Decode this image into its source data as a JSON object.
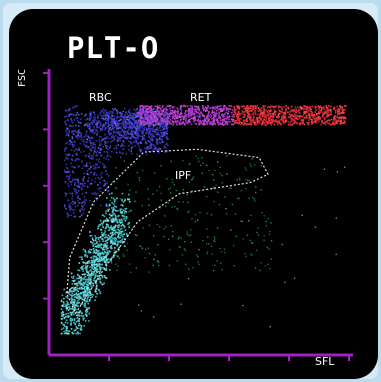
{
  "chart_data": {
    "type": "scatter",
    "title": "PLT-O",
    "xlabel": "SFL",
    "ylabel": "FSC",
    "xlim": [
      0,
      100
    ],
    "ylim": [
      0,
      100
    ],
    "grid": false,
    "legend": "none",
    "annotations": [
      {
        "text": "RBC",
        "x": 17,
        "y": 92
      },
      {
        "text": "RET",
        "x": 51,
        "y": 92
      },
      {
        "text": "IPF",
        "x": 46,
        "y": 64
      }
    ],
    "gates": [
      {
        "label": "IPF",
        "points": [
          [
            9,
            15
          ],
          [
            18,
            30
          ],
          [
            30,
            48
          ],
          [
            44,
            58
          ],
          [
            68,
            62
          ],
          [
            74,
            65
          ],
          [
            71,
            71
          ],
          [
            50,
            74
          ],
          [
            32,
            73
          ],
          [
            15,
            55
          ],
          [
            7,
            35
          ],
          [
            6,
            22
          ]
        ]
      }
    ],
    "series": [
      {
        "color": "#3f35c8",
        "x": [
          5,
          40
        ],
        "y": [
          50,
          90
        ]
      },
      {
        "color": "#a63bd6",
        "x": [
          30,
          62
        ],
        "y": [
          82,
          90
        ]
      },
      {
        "color": "#dc2a3c",
        "x": [
          62,
          100
        ],
        "y": [
          83,
          90
        ]
      },
      {
        "color": "#46c8cf",
        "x": [
          5,
          28
        ],
        "y": [
          10,
          55
        ]
      },
      {
        "color": "#22aa55",
        "x": [
          20,
          80
        ],
        "y": [
          20,
          75
        ]
      }
    ],
    "colors": {
      "background": "#000000",
      "axis": "#a020c0",
      "gate": "#e0e0e0",
      "text": "#ffffff"
    }
  }
}
